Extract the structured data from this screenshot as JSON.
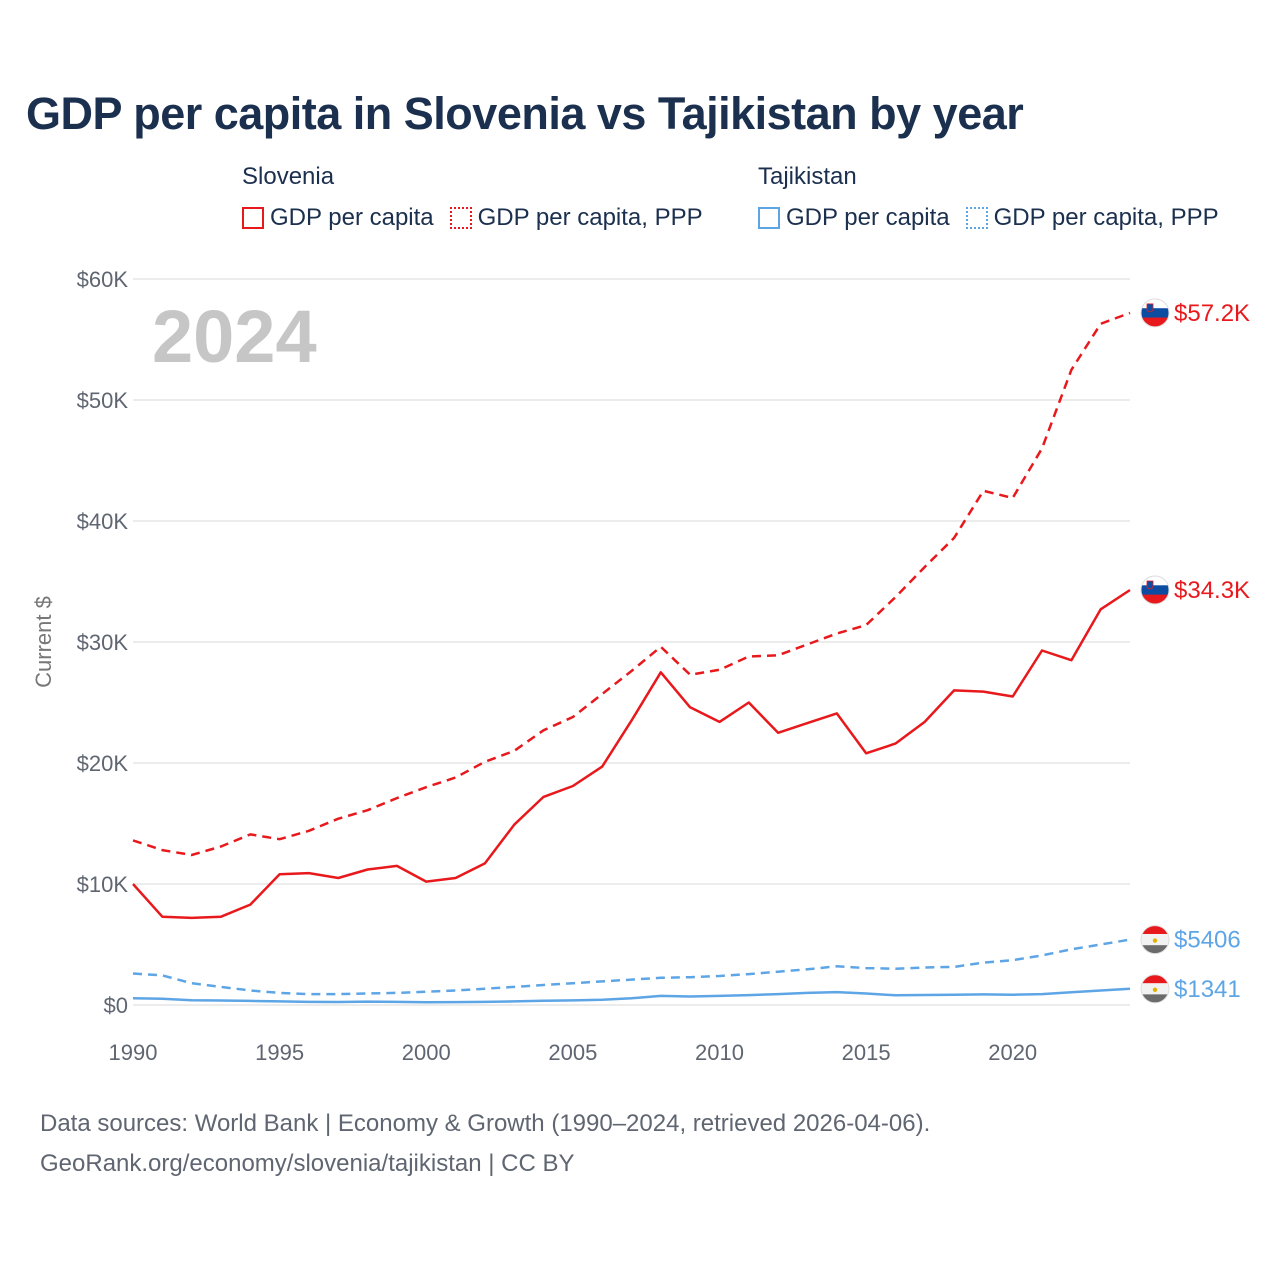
{
  "title": "GDP per capita in Slovenia vs Tajikistan by year",
  "legend": [
    {
      "group": "Slovenia",
      "items": [
        {
          "label": "GDP per capita",
          "style": "solid",
          "color": "#e8191c"
        },
        {
          "label": "GDP per capita, PPP",
          "style": "dotted",
          "color": "#e8191c"
        }
      ]
    },
    {
      "group": "Tajikistan",
      "items": [
        {
          "label": "GDP per capita",
          "style": "solid",
          "color": "#5ea5e6"
        },
        {
          "label": "GDP per capita, PPP",
          "style": "dotted",
          "color": "#5ea5e6"
        }
      ]
    }
  ],
  "footer": {
    "line1": "Data sources: World Bank | Economy & Growth (1990–2024, retrieved 2026-04-06).",
    "line2": "GeoRank.org/economy/slovenia/tajikistan | CC BY"
  },
  "chart_data": {
    "type": "line",
    "title": "GDP per capita in Slovenia vs Tajikistan by year",
    "xlabel": "",
    "ylabel": "Current $",
    "year_label": "2024",
    "xlim": [
      1990,
      2024
    ],
    "ylim": [
      0,
      60000
    ],
    "x_ticks": [
      1990,
      1995,
      2000,
      2005,
      2010,
      2015,
      2020
    ],
    "y_ticks": [
      {
        "value": 0,
        "label": "$0"
      },
      {
        "value": 10000,
        "label": "$10K"
      },
      {
        "value": 20000,
        "label": "$20K"
      },
      {
        "value": 30000,
        "label": "$30K"
      },
      {
        "value": 40000,
        "label": "$40K"
      },
      {
        "value": 50000,
        "label": "$50K"
      },
      {
        "value": 60000,
        "label": "$60K"
      }
    ],
    "grid": true,
    "x": [
      1990,
      1991,
      1992,
      1993,
      1994,
      1995,
      1996,
      1997,
      1998,
      1999,
      2000,
      2001,
      2002,
      2003,
      2004,
      2005,
      2006,
      2007,
      2008,
      2009,
      2010,
      2011,
      2012,
      2013,
      2014,
      2015,
      2016,
      2017,
      2018,
      2019,
      2020,
      2021,
      2022,
      2023,
      2024
    ],
    "series": [
      {
        "name": "Slovenia GDP per capita, PPP",
        "country": "Slovenia",
        "style": "dashed",
        "color": "#e8191c",
        "end_label": "$57.2K",
        "flag": "slovenia",
        "values": [
          13600,
          12800,
          12400,
          13100,
          14100,
          13700,
          14400,
          15400,
          16100,
          17100,
          18000,
          18800,
          20100,
          21000,
          22700,
          23800,
          25700,
          27600,
          29600,
          27300,
          27700,
          28800,
          28900,
          29800,
          30700,
          31400,
          33700,
          36200,
          38600,
          42500,
          41900,
          46000,
          52500,
          56300,
          57200
        ]
      },
      {
        "name": "Slovenia GDP per capita",
        "country": "Slovenia",
        "style": "solid",
        "color": "#e8191c",
        "end_label": "$34.3K",
        "flag": "slovenia",
        "values": [
          10000,
          7300,
          7200,
          7300,
          8300,
          10800,
          10900,
          10500,
          11200,
          11500,
          10200,
          10500,
          11700,
          14900,
          17200,
          18100,
          19700,
          23500,
          27500,
          24600,
          23400,
          25000,
          22500,
          23300,
          24100,
          20800,
          21600,
          23400,
          26000,
          25900,
          25500,
          29300,
          28500,
          32700,
          34300
        ]
      },
      {
        "name": "Tajikistan GDP per capita, PPP",
        "country": "Tajikistan",
        "style": "dashed",
        "color": "#5ea5e6",
        "end_label": "$5406",
        "flag": "tajikistan",
        "values": [
          2600,
          2450,
          1800,
          1500,
          1200,
          1000,
          900,
          900,
          950,
          1000,
          1100,
          1200,
          1350,
          1500,
          1650,
          1800,
          1950,
          2100,
          2250,
          2300,
          2400,
          2550,
          2750,
          2950,
          3200,
          3050,
          3000,
          3100,
          3150,
          3500,
          3700,
          4100,
          4600,
          5000,
          5406
        ]
      },
      {
        "name": "Tajikistan GDP per capita",
        "country": "Tajikistan",
        "style": "solid",
        "color": "#5ea5e6",
        "end_label": "$1341",
        "flag": "tajikistan",
        "values": [
          560,
          520,
          400,
          370,
          340,
          300,
          260,
          250,
          280,
          260,
          220,
          240,
          260,
          300,
          350,
          380,
          430,
          550,
          750,
          700,
          750,
          820,
          900,
          1000,
          1070,
          950,
          800,
          830,
          850,
          880,
          850,
          900,
          1050,
          1200,
          1341
        ]
      }
    ]
  }
}
